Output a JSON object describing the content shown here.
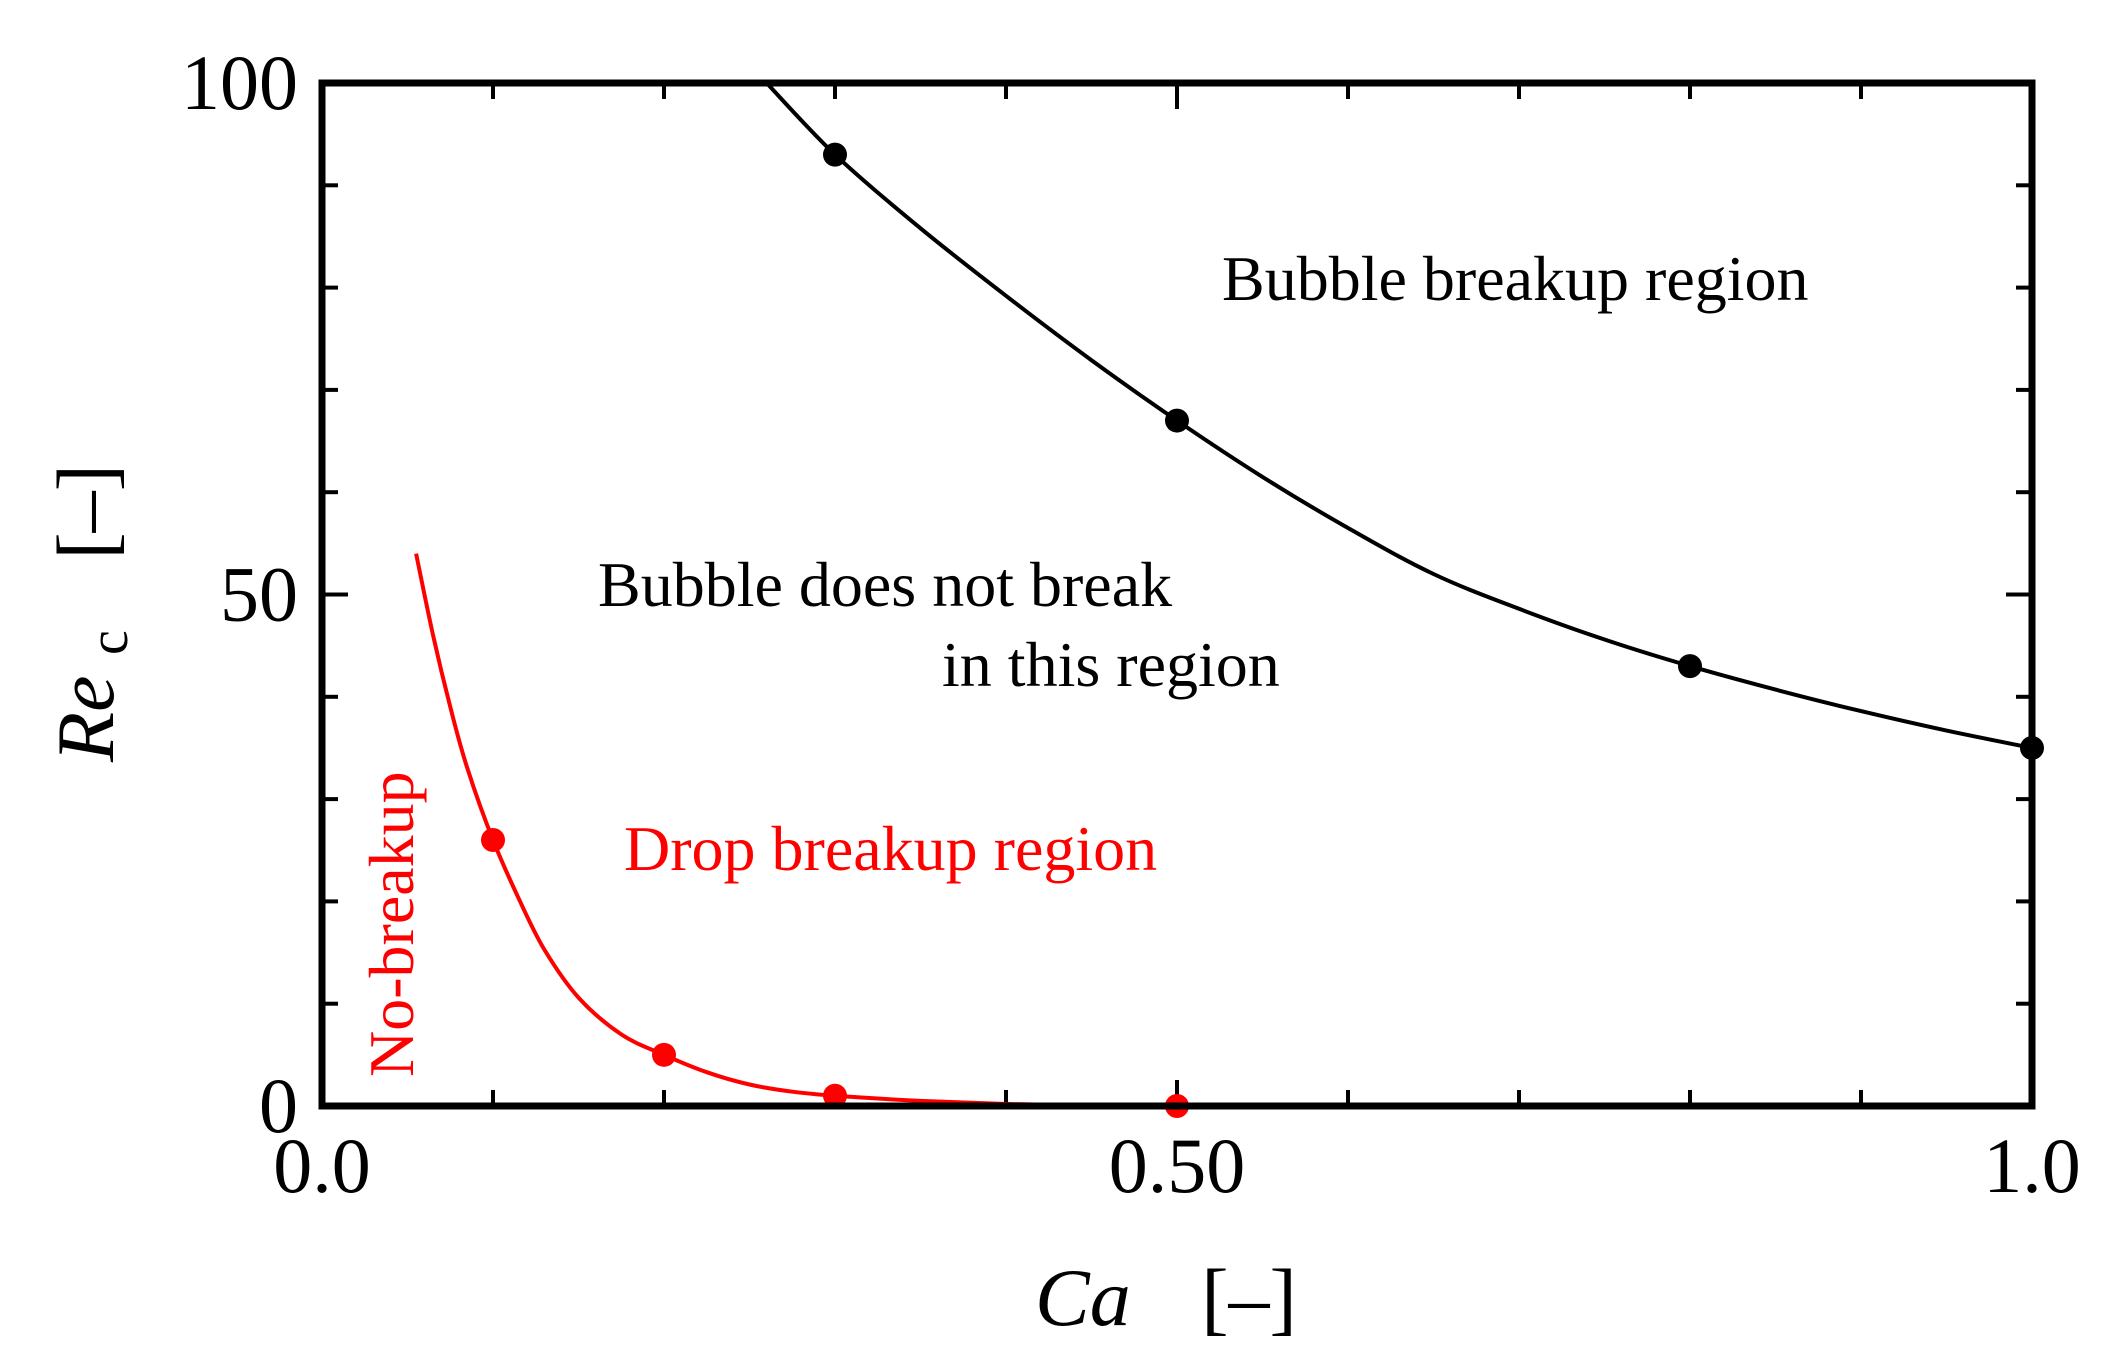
{
  "chart_data": {
    "type": "line",
    "title": "",
    "xlabel": {
      "main": "Ca",
      "unit": "[–]"
    },
    "ylabel": {
      "main": "Re",
      "sub": "c",
      "unit": "[–]"
    },
    "xlim": [
      0,
      1
    ],
    "ylim": [
      0,
      100
    ],
    "x_ticks": [
      {
        "value": 0,
        "label": "0.0"
      },
      {
        "value": 0.5,
        "label": "0.50"
      },
      {
        "value": 1,
        "label": "1.0"
      }
    ],
    "y_ticks": [
      {
        "value": 0,
        "label": "0"
      },
      {
        "value": 50,
        "label": "50"
      },
      {
        "value": 100,
        "label": "100"
      }
    ],
    "x_minor_step": 0.1,
    "y_minor_step": 10,
    "grid": false,
    "series": [
      {
        "color": "#000000",
        "points": [
          {
            "x": 0.3,
            "y": 93
          },
          {
            "x": 0.5,
            "y": 67
          },
          {
            "x": 0.8,
            "y": 43
          },
          {
            "x": 1.0,
            "y": 35
          }
        ],
        "curve": [
          [
            0.26,
            100
          ],
          [
            0.3,
            93
          ],
          [
            0.35,
            85.8
          ],
          [
            0.4,
            79.2
          ],
          [
            0.45,
            72.9
          ],
          [
            0.5,
            67
          ],
          [
            0.55,
            61.5
          ],
          [
            0.6,
            56.5
          ],
          [
            0.65,
            52
          ],
          [
            0.7,
            48.6
          ],
          [
            0.75,
            45.6
          ],
          [
            0.8,
            43
          ],
          [
            0.85,
            40.7
          ],
          [
            0.9,
            38.6
          ],
          [
            0.95,
            36.7
          ],
          [
            1.0,
            35
          ]
        ]
      },
      {
        "color": "#ff0000",
        "points": [
          {
            "x": 0.1,
            "y": 26
          },
          {
            "x": 0.2,
            "y": 5
          },
          {
            "x": 0.3,
            "y": 1
          },
          {
            "x": 0.5,
            "y": 0
          }
        ],
        "curve": [
          [
            0.055,
            54
          ],
          [
            0.065,
            46
          ],
          [
            0.075,
            39
          ],
          [
            0.085,
            33
          ],
          [
            0.1,
            26
          ],
          [
            0.115,
            20.3
          ],
          [
            0.13,
            15.3
          ],
          [
            0.15,
            10.6
          ],
          [
            0.175,
            7
          ],
          [
            0.2,
            5
          ],
          [
            0.225,
            3.3
          ],
          [
            0.25,
            2.1
          ],
          [
            0.275,
            1.4
          ],
          [
            0.3,
            1
          ],
          [
            0.35,
            0.5
          ],
          [
            0.4,
            0.2
          ],
          [
            0.45,
            0.05
          ],
          [
            0.5,
            0
          ]
        ]
      }
    ],
    "annotations": [
      {
        "text": "Bubble breakup region",
        "color": "#000000"
      },
      {
        "text": "Bubble does not break",
        "color": "#000000"
      },
      {
        "text": "in this region",
        "color": "#000000"
      },
      {
        "text": "Drop breakup region",
        "color": "#ff0000"
      },
      {
        "text": "No-breakup",
        "color": "#ff0000",
        "rotation": "vertical"
      }
    ]
  }
}
